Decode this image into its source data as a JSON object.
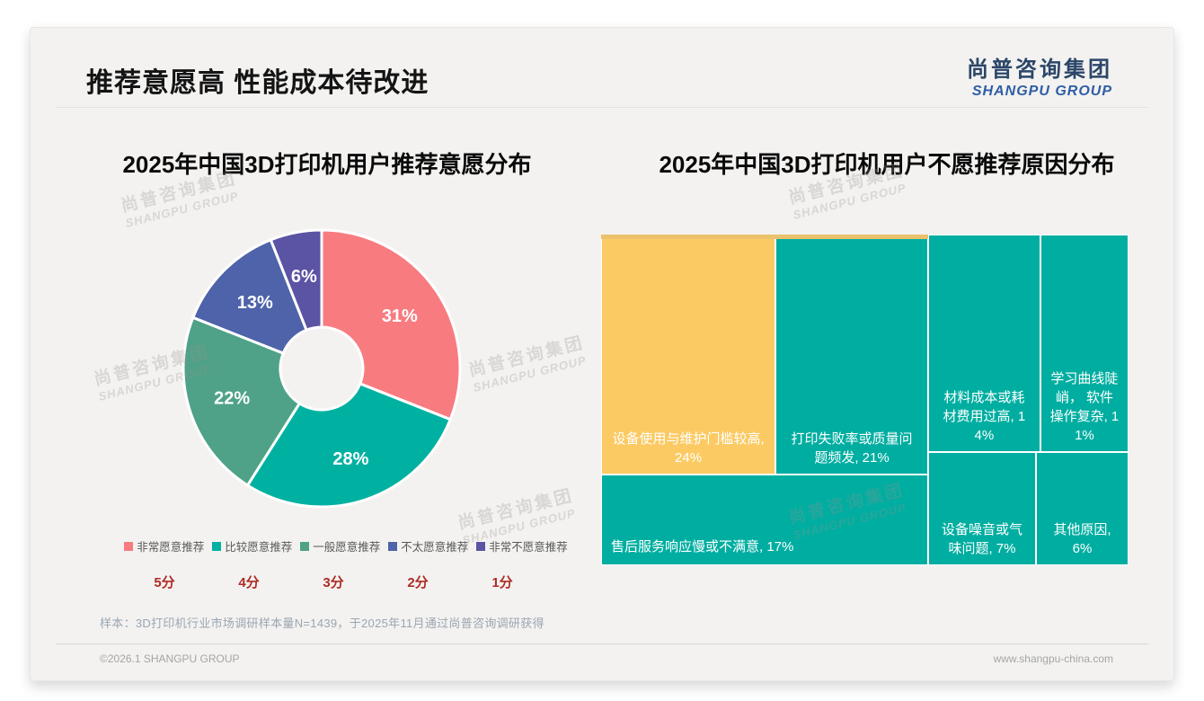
{
  "header": {
    "title": "推荐意愿高 性能成本待改进"
  },
  "logo": {
    "cn": "尚普咨询集团",
    "en": "SHANGPU GROUP"
  },
  "watermark": {
    "cn": "尚普咨询集团",
    "en": "SHANGPU GROUP"
  },
  "footnote": "样本：3D打印机行业市场调研样本量N=1439，于2025年11月通过尚普咨询调研获得",
  "footer": {
    "left": "©2026.1 SHANGPU GROUP",
    "right": "www.shangpu-china.com"
  },
  "chart_data": [
    {
      "type": "pie",
      "title": "2025年中国3D打印机用户推荐意愿分布",
      "donut": true,
      "start_angle_deg": 0,
      "clockwise": true,
      "series": [
        {
          "label": "非常愿意推荐",
          "score": "5分",
          "value": 31,
          "color": "#F87B80"
        },
        {
          "label": "比较愿意推荐",
          "score": "4分",
          "value": 28,
          "color": "#00B1A2"
        },
        {
          "label": "一般愿意推荐",
          "score": "3分",
          "value": 22,
          "color": "#4FA287"
        },
        {
          "label": "不太愿意推荐",
          "score": "2分",
          "value": 13,
          "color": "#4E63A9"
        },
        {
          "label": "非常不愿意推荐",
          "score": "1分",
          "value": 6,
          "color": "#5B53A4"
        }
      ],
      "legend_position": "bottom",
      "value_suffix": "%"
    },
    {
      "type": "treemap",
      "title": "2025年中国3D打印机用户不愿推荐原因分布",
      "items": [
        {
          "label": "设备使用与维护门槛较高",
          "value": 24,
          "color": "#FBCA63",
          "display": "设备使用与维护门槛较高, 24%"
        },
        {
          "label": "打印失败率或质量问题频发",
          "value": 21,
          "color": "#00AEA1",
          "display": "打印失败率或质量问题频发, 21%"
        },
        {
          "label": "售后服务响应慢或不满意",
          "value": 17,
          "color": "#00AEA1",
          "display": "售后服务响应慢或不满意, 17%"
        },
        {
          "label": "材料成本或耗材费用过高",
          "value": 14,
          "color": "#00AEA1",
          "display": "材料成本或耗材费用过高, 14%"
        },
        {
          "label": "学习曲线陡峭，软件操作复杂",
          "value": 11,
          "color": "#00AEA1",
          "display": "学习曲线陡峭， 软件操作复杂, 11%"
        },
        {
          "label": "设备噪音或气味问题",
          "value": 7,
          "color": "#00AEA1",
          "display": "设备噪音或气味问题, 7%"
        },
        {
          "label": "其他原因",
          "value": 6,
          "color": "#00AEA1",
          "display": "其他原因, 6%"
        }
      ]
    }
  ]
}
